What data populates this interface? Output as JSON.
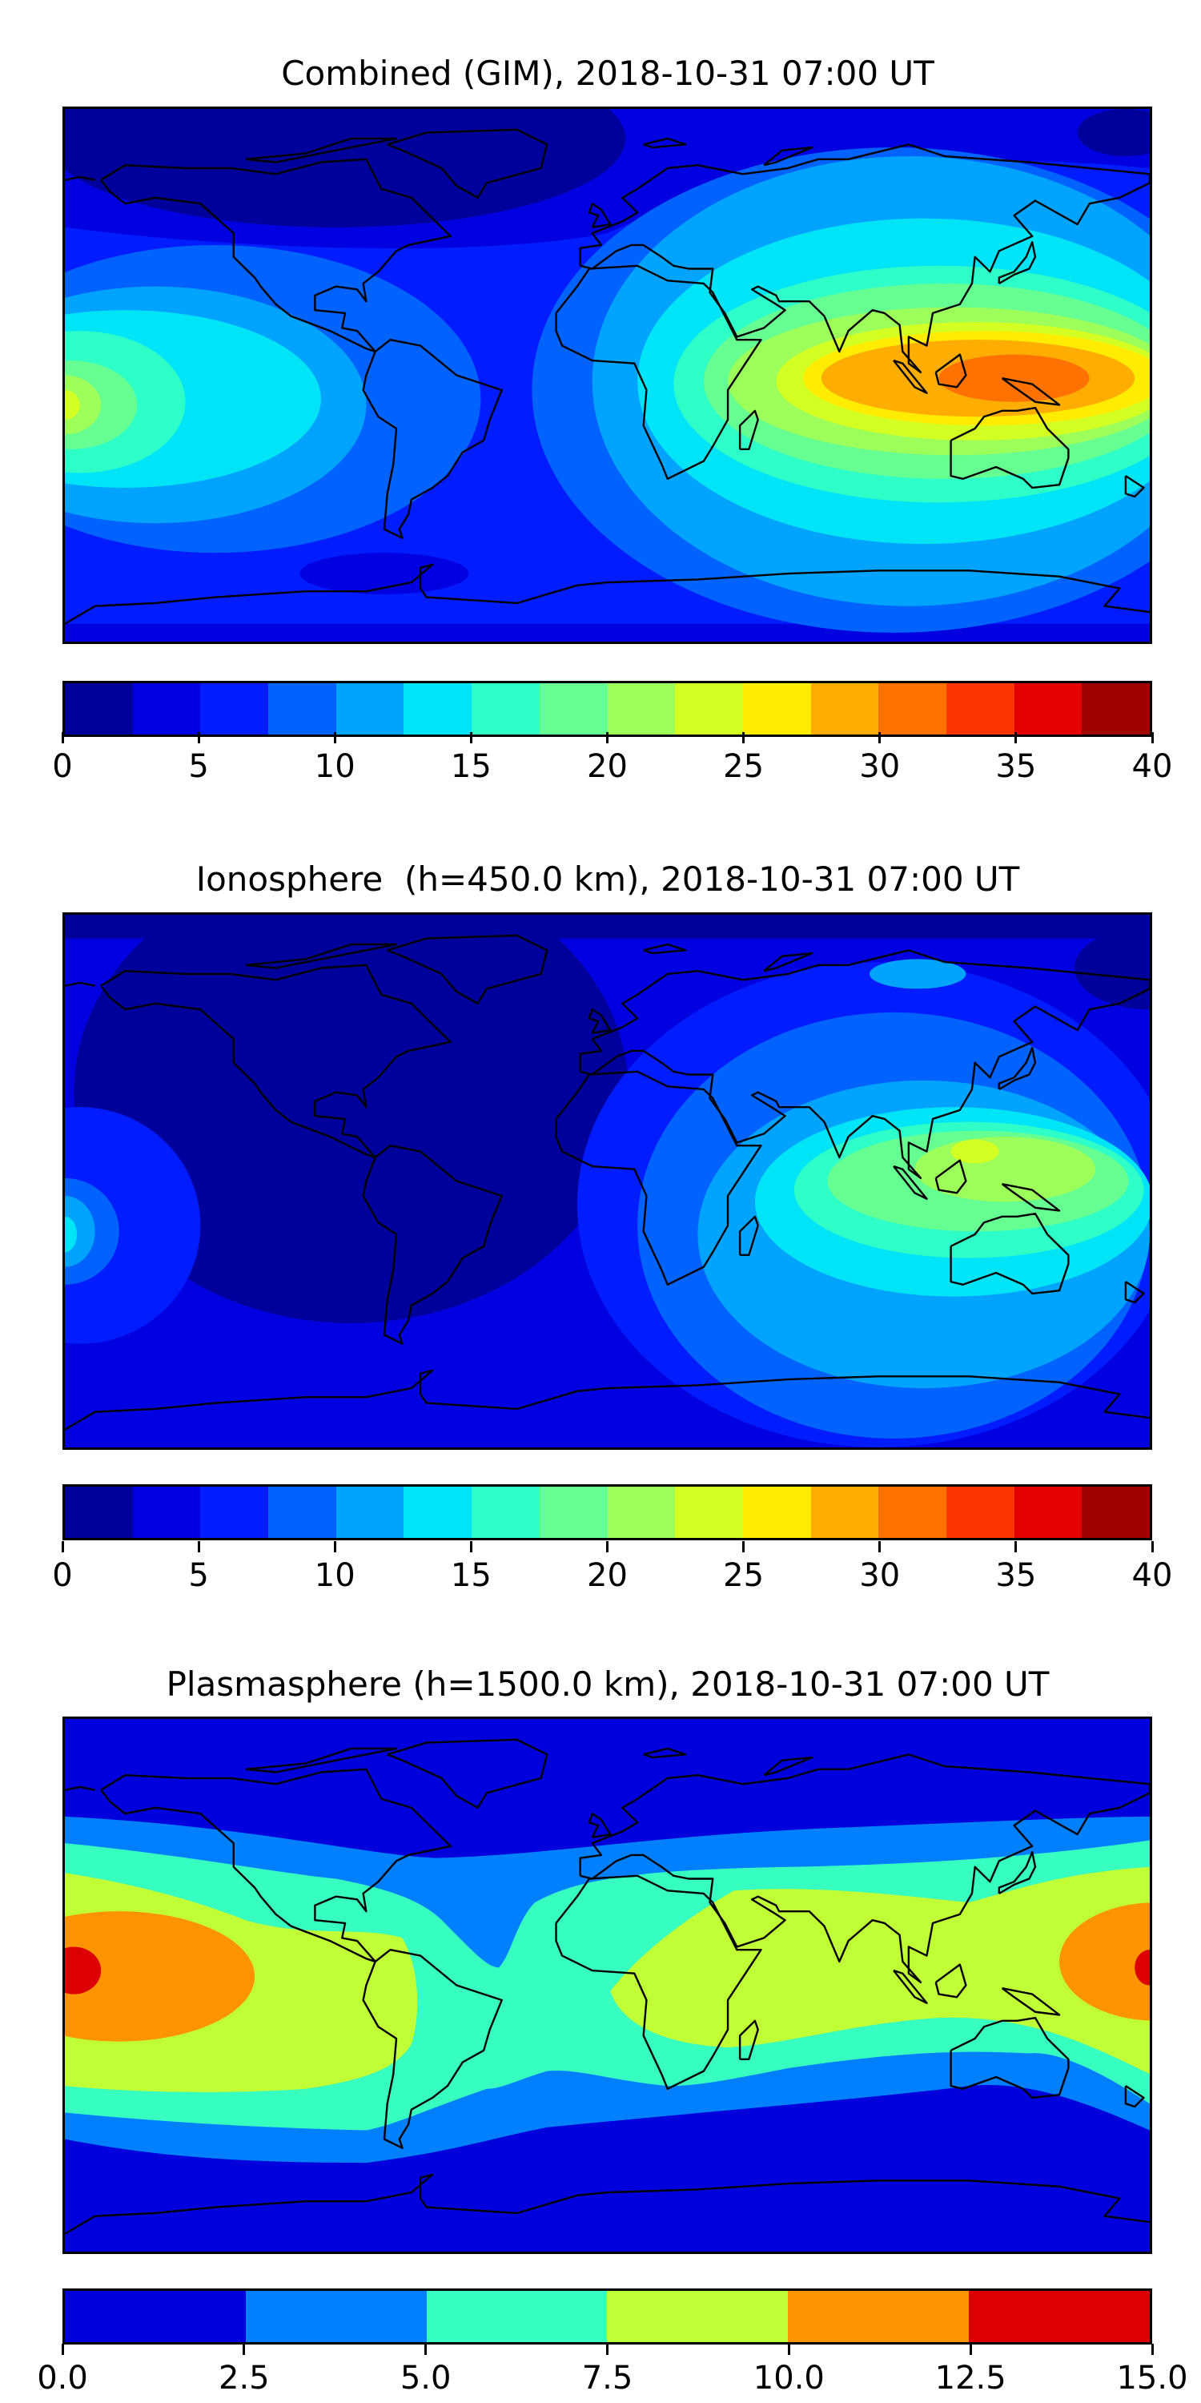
{
  "chart_data": [
    {
      "type": "heatmap",
      "title": "Combined (GIM), 2018-10-31 07:00 UT",
      "projection": "global lon/lat map with coastlines",
      "colorbar": {
        "range": [
          0,
          40
        ],
        "level_step": 2.5,
        "ticks": [
          "0",
          "5",
          "10",
          "15",
          "20",
          "25",
          "30",
          "35",
          "40"
        ],
        "colors": [
          "#00009a",
          "#0000e0",
          "#001cff",
          "#0062ff",
          "#00a4ff",
          "#00e4f8",
          "#2effc9",
          "#66ff91",
          "#9dff5a",
          "#d4ff23",
          "#ffec00",
          "#ffad00",
          "#ff7100",
          "#ff3500",
          "#e40000",
          "#9f0000"
        ]
      }
    },
    {
      "type": "heatmap",
      "title": "Ionosphere  (h=450.0 km), 2018-10-31 07:00 UT",
      "projection": "global lon/lat map with coastlines",
      "colorbar": {
        "range": [
          0,
          40
        ],
        "level_step": 2.5,
        "ticks": [
          "0",
          "5",
          "10",
          "15",
          "20",
          "25",
          "30",
          "35",
          "40"
        ],
        "colors": [
          "#00009a",
          "#0000e0",
          "#001cff",
          "#0062ff",
          "#00a4ff",
          "#00e4f8",
          "#2effc9",
          "#66ff91",
          "#9dff5a",
          "#d4ff23",
          "#ffec00",
          "#ffad00",
          "#ff7100",
          "#ff3500",
          "#e40000",
          "#9f0000"
        ]
      }
    },
    {
      "type": "heatmap",
      "title": "Plasmasphere (h=1500.0 km), 2018-10-31 07:00 UT",
      "projection": "global lon/lat map with coastlines",
      "colorbar": {
        "range": [
          0,
          15
        ],
        "level_step": 2.5,
        "ticks": [
          "0.0",
          "2.5",
          "5.0",
          "7.5",
          "10.0",
          "12.5",
          "15.0"
        ],
        "colors": [
          "#0000dc",
          "#0080ff",
          "#36ffc0",
          "#c0ff36",
          "#ff9400",
          "#dc0000"
        ]
      }
    }
  ]
}
